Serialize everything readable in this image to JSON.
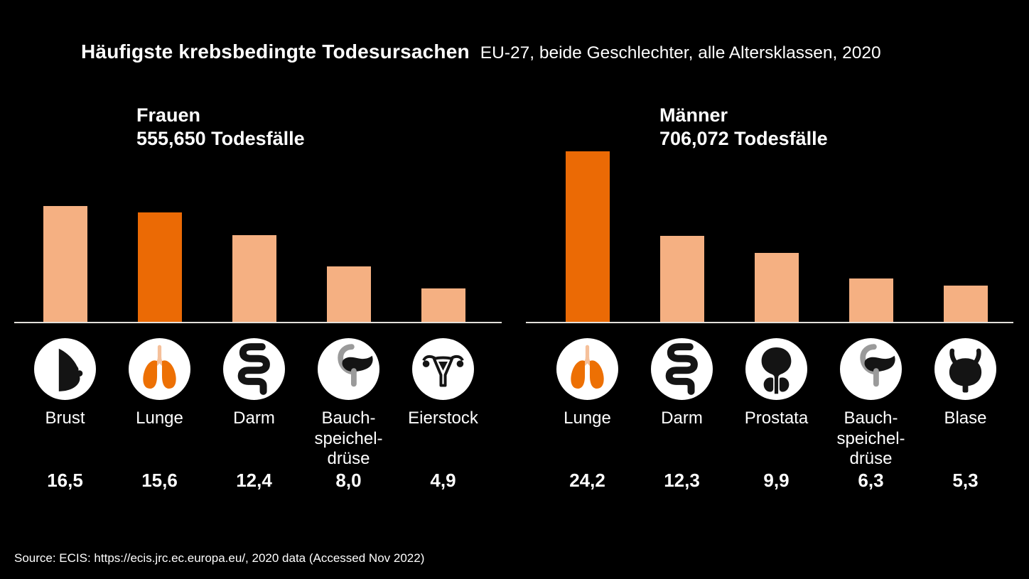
{
  "title": {
    "main": "Häufigste krebsbedingte Todesursachen",
    "subtitle": "EU-27, beide Geschlechter, alle Altersklassen, 2020"
  },
  "source": "Source: ECIS: https://ecis.jrc.ec.europa.eu/, 2020 data (Accessed Nov 2022)",
  "colors": {
    "background": "#000000",
    "text": "#FFFFFF",
    "bar_default": "#F5B082",
    "bar_highlight": "#EB6A05",
    "axis_line": "#E3E0DB",
    "icon_circle": "#FFFFFF",
    "icon_glyph": "#141414",
    "lung_orange": "#ED7004",
    "trachea_peach": "#F5C09A",
    "duodenum_gray": "#9A9A9A"
  },
  "chart_data": [
    {
      "type": "bar",
      "group": "Frauen",
      "total_label": "555,650 Todesfälle",
      "categories": [
        "Brust",
        "Lunge",
        "Darm",
        "Bauch-\nspeichel-\ndrüse",
        "Eierstock"
      ],
      "values": [
        16.5,
        15.6,
        12.4,
        8.0,
        4.9
      ],
      "value_labels": [
        "16,5",
        "15,6",
        "12,4",
        "8,0",
        "4,9"
      ],
      "highlight_index": 1,
      "icons": [
        "breast",
        "lungs",
        "intestine",
        "pancreas",
        "ovary"
      ],
      "ylim": [
        0,
        24.5
      ],
      "grid": false,
      "legend": false
    },
    {
      "type": "bar",
      "group": "Männer",
      "total_label": "706,072 Todesfälle",
      "categories": [
        "Lunge",
        "Darm",
        "Prostata",
        "Bauch-\nspeichel-\ndrüse",
        "Blase"
      ],
      "values": [
        24.2,
        12.3,
        9.9,
        6.3,
        5.3
      ],
      "value_labels": [
        "24,2",
        "12,3",
        "9,9",
        "6,3",
        "5,3"
      ],
      "highlight_index": 0,
      "icons": [
        "lungs",
        "intestine",
        "prostate",
        "pancreas",
        "bladder"
      ],
      "ylim": [
        0,
        24.5
      ],
      "grid": false,
      "legend": false
    }
  ]
}
